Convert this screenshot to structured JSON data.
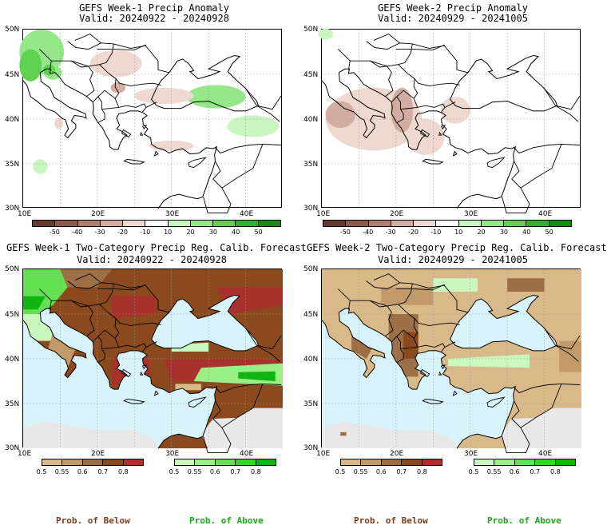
{
  "panels": [
    {
      "title": "GEFS Week-1 Precip Anomaly",
      "valid": "Valid: 20240922 - 20240928"
    },
    {
      "title": "GEFS Week-2 Precip Anomaly",
      "valid": "Valid: 20240929 - 20241005"
    },
    {
      "title": "GEFS Week-1 Two-Category Precip Reg. Calib. Forecast",
      "valid": "Valid: 20240922 - 20240928"
    },
    {
      "title": "GEFS Week-2 Two-Category Precip Reg. Calib. Forecast",
      "valid": "Valid: 20240929 - 20241005"
    }
  ],
  "axes": {
    "lat": [
      "50N",
      "45N",
      "40N",
      "35N",
      "30N"
    ],
    "lon": [
      "10E",
      "20E",
      "30E",
      "40E"
    ]
  },
  "anomaly_colorbar": {
    "ticks": [
      "-50",
      "-40",
      "-30",
      "-20",
      "-10",
      "10",
      "20",
      "30",
      "40",
      "50"
    ],
    "colors": [
      "#6b3a2f",
      "#8e5a4c",
      "#b07f71",
      "#d2aea2",
      "#eed8cf",
      "#ffffff",
      "#c8f5c0",
      "#96e68a",
      "#5fd252",
      "#2db52a",
      "#0d8f12"
    ]
  },
  "below_colorbar": {
    "ticks": [
      "0.5",
      "0.55",
      "0.6",
      "0.7",
      "0.8"
    ],
    "colors": [
      "#d9b98a",
      "#c29a6a",
      "#9c6f47",
      "#8b4a1e",
      "#a8302d"
    ]
  },
  "above_colorbar": {
    "ticks": [
      "0.5",
      "0.55",
      "0.6",
      "0.7",
      "0.8"
    ],
    "colors": [
      "#c9f7bd",
      "#9aee86",
      "#66e053",
      "#3cd12e",
      "#12b412"
    ]
  },
  "footer": {
    "below_label_left": "Prob. of Below",
    "above_label_left": "Prob. of Above",
    "below_label_right": "Prob. of Below",
    "above_label_right": "Prob. of Above",
    "below_color": "#7a3a1a",
    "above_color": "#1aa81a"
  }
}
